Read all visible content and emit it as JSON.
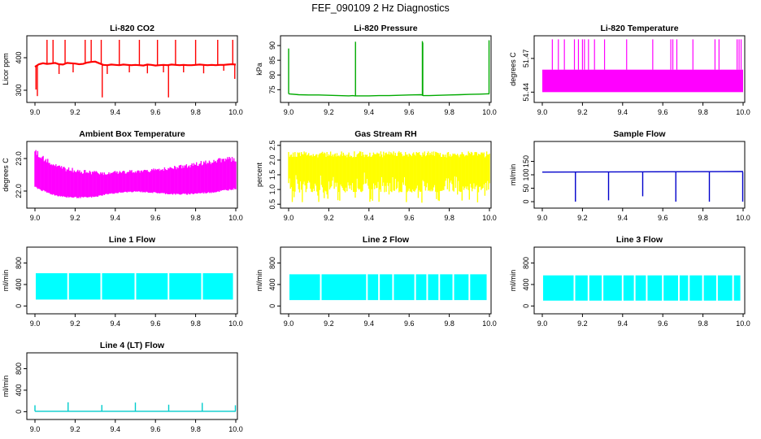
{
  "figure_title": "FEF_090109  2 Hz Diagnostics",
  "chart_data": [
    {
      "id": "co2",
      "type": "line",
      "title": "Li-820 CO2",
      "ylabel": "Licor ppm",
      "color": "#ff0000",
      "xlim": [
        9.0,
        10.0
      ],
      "ylim": [
        270,
        460
      ],
      "xticks": [
        "9.0",
        "9.2",
        "9.4",
        "9.6",
        "9.8",
        "10.0"
      ],
      "yticks": [
        {
          "v": 300,
          "label": "300"
        },
        {
          "v": 400,
          "label": "400"
        }
      ],
      "series": [
        {
          "x": [
            9.0,
            9.02,
            9.04,
            9.06,
            9.08,
            9.1,
            9.12,
            9.14,
            9.16,
            9.18,
            9.2,
            9.22,
            9.24,
            9.26,
            9.28,
            9.3,
            9.32,
            9.34,
            9.36,
            9.38,
            9.4,
            9.42,
            9.44,
            9.46,
            9.48,
            9.5,
            9.52,
            9.54,
            9.56,
            9.58,
            9.6,
            9.62,
            9.64,
            9.66,
            9.68,
            9.7,
            9.72,
            9.74,
            9.76,
            9.78,
            9.8,
            9.82,
            9.84,
            9.86,
            9.88,
            9.9,
            9.92,
            9.94,
            9.96,
            9.98,
            10.0
          ],
          "y": [
            372,
            380,
            383,
            381,
            382,
            384,
            380,
            379,
            384,
            383,
            382,
            380,
            381,
            385,
            387,
            388,
            383,
            378,
            377,
            379,
            378,
            377,
            379,
            378,
            377,
            378,
            377,
            376,
            379,
            378,
            376,
            377,
            378,
            377,
            379,
            378,
            377,
            378,
            377,
            377,
            378,
            379,
            378,
            377,
            378,
            377,
            378,
            378,
            379,
            380,
            379
          ]
        }
      ],
      "spikes": [
        {
          "x": 9.005,
          "y": 302
        },
        {
          "x": 9.012,
          "y": 282
        },
        {
          "x": 9.06,
          "y": 455
        },
        {
          "x": 9.09,
          "y": 455
        },
        {
          "x": 9.12,
          "y": 350
        },
        {
          "x": 9.15,
          "y": 455
        },
        {
          "x": 9.19,
          "y": 355
        },
        {
          "x": 9.25,
          "y": 455
        },
        {
          "x": 9.28,
          "y": 455
        },
        {
          "x": 9.33,
          "y": 455
        },
        {
          "x": 9.335,
          "y": 278
        },
        {
          "x": 9.36,
          "y": 350
        },
        {
          "x": 9.42,
          "y": 455
        },
        {
          "x": 9.47,
          "y": 355
        },
        {
          "x": 9.52,
          "y": 455
        },
        {
          "x": 9.56,
          "y": 352
        },
        {
          "x": 9.61,
          "y": 455
        },
        {
          "x": 9.64,
          "y": 355
        },
        {
          "x": 9.665,
          "y": 278
        },
        {
          "x": 9.7,
          "y": 455
        },
        {
          "x": 9.74,
          "y": 355
        },
        {
          "x": 9.8,
          "y": 455
        },
        {
          "x": 9.84,
          "y": 352
        },
        {
          "x": 9.91,
          "y": 455
        },
        {
          "x": 9.94,
          "y": 360
        },
        {
          "x": 9.985,
          "y": 455
        },
        {
          "x": 9.995,
          "y": 335
        }
      ]
    },
    {
      "id": "pressure",
      "type": "line",
      "title": "Li-820 Pressure",
      "ylabel": "kPa",
      "color": "#00aa00",
      "xlim": [
        9.0,
        10.0
      ],
      "ylim": [
        71.5,
        92.5
      ],
      "xticks": [
        "9.0",
        "9.2",
        "9.4",
        "9.6",
        "9.8",
        "10.0"
      ],
      "yticks": [
        {
          "v": 75,
          "label": "75"
        },
        {
          "v": 80,
          "label": "80"
        },
        {
          "v": 85,
          "label": "85"
        },
        {
          "v": 90,
          "label": "90"
        }
      ],
      "series": [
        {
          "x": [
            9.0,
            9.05,
            9.1,
            9.15,
            9.2,
            9.25,
            9.3,
            9.32,
            9.33,
            9.35,
            9.4,
            9.45,
            9.5,
            9.55,
            9.6,
            9.66,
            9.67,
            9.7,
            9.75,
            9.8,
            9.85,
            9.9,
            9.95,
            9.99,
            10.0
          ],
          "y": [
            73.6,
            73.3,
            73.2,
            73.2,
            73.1,
            73.0,
            72.9,
            73.0,
            72.9,
            72.9,
            72.9,
            73.0,
            73.0,
            73.1,
            73.2,
            73.3,
            73.0,
            73.0,
            73.1,
            73.2,
            73.3,
            73.4,
            73.5,
            73.6,
            73.6
          ]
        }
      ],
      "spikes": [
        {
          "x": 9.0,
          "y": 89.0
        },
        {
          "x": 9.333,
          "y": 91.3
        },
        {
          "x": 9.666,
          "y": 91.5
        },
        {
          "x": 9.668,
          "y": 91.0
        },
        {
          "x": 9.998,
          "y": 91.8
        }
      ]
    },
    {
      "id": "licor_temp",
      "type": "area",
      "title": "Li-820 Temperature",
      "ylabel": "degrees C",
      "color": "#ff00ff",
      "xlim": [
        9.0,
        10.0
      ],
      "ylim": [
        51.433,
        51.488
      ],
      "xticks": [
        "9.0",
        "9.2",
        "9.4",
        "9.6",
        "9.8",
        "10.0"
      ],
      "yticks": [
        {
          "v": 51.44,
          "label": "51.44"
        },
        {
          "v": 51.47,
          "label": "51.47"
        }
      ],
      "band": [
        51.44,
        51.46
      ],
      "spike_top": 51.487,
      "spike_x": [
        9.05,
        9.08,
        9.11,
        9.16,
        9.18,
        9.2,
        9.21,
        9.23,
        9.26,
        9.31,
        9.42,
        9.55,
        9.64,
        9.65,
        9.67,
        9.75,
        9.86,
        9.88,
        9.97,
        9.98,
        9.99
      ]
    },
    {
      "id": "box_temp",
      "type": "area",
      "title": "Ambient Box Temperature",
      "ylabel": "degrees C",
      "color": "#ff00ff",
      "xlim": [
        9.0,
        10.0
      ],
      "ylim": [
        21.55,
        23.45
      ],
      "xticks": [
        "9.0",
        "9.2",
        "9.4",
        "9.6",
        "9.8",
        "10.0"
      ],
      "yticks": [
        {
          "v": 22.0,
          "label": "22.0"
        },
        {
          "v": 23.0,
          "label": "23.0"
        }
      ],
      "series": [
        {
          "x": [
            9.0,
            9.05,
            9.1,
            9.15,
            9.2,
            9.25,
            9.3,
            9.35,
            9.4,
            9.45,
            9.5,
            9.55,
            9.6,
            9.65,
            9.7,
            9.75,
            9.8,
            9.85,
            9.9,
            9.95,
            10.0
          ],
          "upper": [
            23.3,
            23.05,
            22.85,
            22.75,
            22.7,
            22.65,
            22.62,
            22.6,
            22.62,
            22.64,
            22.66,
            22.68,
            22.7,
            22.75,
            22.8,
            22.85,
            22.9,
            22.95,
            23.0,
            23.05,
            23.05
          ],
          "lower": [
            22.1,
            21.95,
            21.85,
            21.8,
            21.78,
            21.78,
            21.8,
            21.88,
            21.92,
            21.95,
            21.97,
            21.95,
            21.93,
            21.9,
            21.88,
            21.88,
            21.9,
            21.92,
            21.95,
            22.0,
            22.05
          ]
        }
      ]
    },
    {
      "id": "rh",
      "type": "area",
      "title": "Gas Stream RH",
      "ylabel": "percent",
      "color": "#ffff00",
      "xlim": [
        9.0,
        10.0
      ],
      "ylim": [
        0.45,
        2.55
      ],
      "xticks": [
        "9.0",
        "9.2",
        "9.4",
        "9.6",
        "9.8",
        "10.0"
      ],
      "yticks": [
        {
          "v": 0.5,
          "label": "0.5"
        },
        {
          "v": 1.0,
          "label": "1.0"
        },
        {
          "v": 1.5,
          "label": "1.5"
        },
        {
          "v": 2.0,
          "label": "2.0"
        },
        {
          "v": 2.5,
          "label": "2.5"
        }
      ],
      "series": [
        {
          "x": [
            9.0,
            10.0
          ],
          "upper": [
            2.3,
            2.3
          ],
          "lower": [
            0.9,
            0.9
          ]
        }
      ]
    },
    {
      "id": "sample_flow",
      "type": "line",
      "title": "Sample Flow",
      "ylabel": "ml/min",
      "color": "#0000cc",
      "xlim": [
        9.0,
        10.0
      ],
      "ylim": [
        -15,
        215
      ],
      "xticks": [
        "9.0",
        "9.2",
        "9.4",
        "9.6",
        "9.8",
        "10.0"
      ],
      "yticks": [
        {
          "v": 0,
          "label": "0"
        },
        {
          "v": 50,
          "label": "50"
        },
        {
          "v": 100,
          "label": "100"
        },
        {
          "v": 150,
          "label": "150"
        }
      ],
      "series": [
        {
          "x": [
            9.0,
            10.0
          ],
          "y": [
            110,
            112
          ]
        }
      ],
      "dips": [
        {
          "x": 9.165,
          "y": 0
        },
        {
          "x": 9.33,
          "y": 5
        },
        {
          "x": 9.5,
          "y": 20
        },
        {
          "x": 9.665,
          "y": 0
        },
        {
          "x": 9.832,
          "y": 0
        },
        {
          "x": 9.998,
          "y": 0
        }
      ]
    },
    {
      "id": "line1",
      "type": "area",
      "title": "Line 1 Flow",
      "ylabel": "ml/min",
      "color": "#00ffff",
      "xlim": [
        9.0,
        10.0
      ],
      "ylim": [
        -100,
        1050
      ],
      "xticks": [
        "9.0",
        "9.2",
        "9.4",
        "9.6",
        "9.8",
        "10.0"
      ],
      "yticks": [
        {
          "v": 0,
          "label": "0"
        },
        {
          "v": 400,
          "label": "400"
        },
        {
          "v": 800,
          "label": "800"
        }
      ],
      "band": [
        120,
        610
      ],
      "gaps": [
        9.165,
        9.33,
        9.5,
        9.665,
        9.832
      ]
    },
    {
      "id": "line2",
      "type": "area",
      "title": "Line 2 Flow",
      "ylabel": "ml/min",
      "color": "#00ffff",
      "xlim": [
        9.0,
        10.0
      ],
      "ylim": [
        -100,
        1050
      ],
      "xticks": [
        "9.0",
        "9.2",
        "9.4",
        "9.6",
        "9.8",
        "10.0"
      ],
      "yticks": [
        {
          "v": 0,
          "label": "0"
        },
        {
          "v": 400,
          "label": "400"
        },
        {
          "v": 800,
          "label": "800"
        }
      ],
      "band": [
        110,
        590
      ],
      "gaps": [
        9.16,
        9.39,
        9.45,
        9.52,
        9.63,
        9.69,
        9.75,
        9.82,
        9.9
      ]
    },
    {
      "id": "line3",
      "type": "area",
      "title": "Line 3 Flow",
      "ylabel": "ml/min",
      "color": "#00ffff",
      "xlim": [
        9.0,
        10.0
      ],
      "ylim": [
        -100,
        1050
      ],
      "xticks": [
        "9.0",
        "9.2",
        "9.4",
        "9.6",
        "9.8",
        "10.0"
      ],
      "yticks": [
        {
          "v": 0,
          "label": "0"
        },
        {
          "v": 400,
          "label": "400"
        },
        {
          "v": 800,
          "label": "800"
        }
      ],
      "band": [
        100,
        570
      ],
      "gaps": [
        9.16,
        9.23,
        9.3,
        9.4,
        9.46,
        9.52,
        9.6,
        9.68,
        9.73,
        9.8,
        9.87,
        9.95
      ]
    },
    {
      "id": "line4",
      "type": "line",
      "title": "Line 4 (LT) Flow",
      "ylabel": "ml/min",
      "color": "#00cccc",
      "xlim": [
        9.0,
        10.0
      ],
      "ylim": [
        -100,
        1050
      ],
      "xticks": [
        "9.0",
        "9.2",
        "9.4",
        "9.6",
        "9.8",
        "10.0"
      ],
      "yticks": [
        {
          "v": 0,
          "label": "0"
        },
        {
          "v": 400,
          "label": "400"
        },
        {
          "v": 800,
          "label": "800"
        }
      ],
      "series": [
        {
          "x": [
            9.0,
            10.0
          ],
          "y": [
            8,
            8
          ]
        }
      ],
      "spikes": [
        {
          "x": 9.0,
          "y": 120
        },
        {
          "x": 9.165,
          "y": 175
        },
        {
          "x": 9.333,
          "y": 125
        },
        {
          "x": 9.5,
          "y": 170
        },
        {
          "x": 9.666,
          "y": 130
        },
        {
          "x": 9.833,
          "y": 165
        },
        {
          "x": 9.998,
          "y": 120
        }
      ]
    }
  ]
}
